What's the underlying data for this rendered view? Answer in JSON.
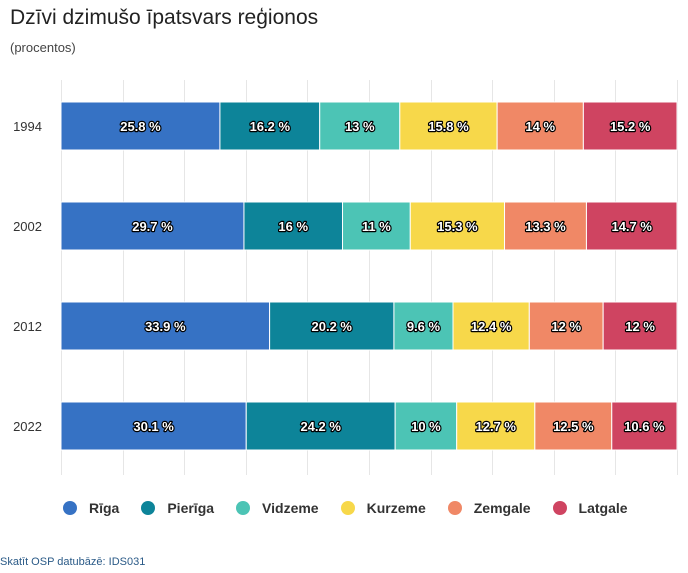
{
  "header": {
    "title": "Dzīvi dzimušo īpatsvars reģionos",
    "subtitle": "(procentos)"
  },
  "source_link": "Skatīt OSP datubāzē: IDS031",
  "chart_data": {
    "type": "bar",
    "orientation": "horizontal",
    "stacked": "percent",
    "categories": [
      "1994",
      "2002",
      "2012",
      "2022"
    ],
    "series": [
      {
        "name": "Rīga",
        "color": "#3672c4",
        "values": [
          25.8,
          29.7,
          33.9,
          30.1
        ],
        "labels": [
          "25.8 %",
          "29.7 %",
          "33.9 %",
          "30.1 %"
        ]
      },
      {
        "name": "Pierīga",
        "color": "#0d8499",
        "values": [
          16.2,
          16,
          20.2,
          24.2
        ],
        "labels": [
          "16.2 %",
          "16 %",
          "20.2 %",
          "24.2 %"
        ]
      },
      {
        "name": "Vidzeme",
        "color": "#4cc4b5",
        "values": [
          13,
          11,
          9.6,
          10
        ],
        "labels": [
          "13 %",
          "11 %",
          "9.6 %",
          "10 %"
        ]
      },
      {
        "name": "Kurzeme",
        "color": "#f7d84a",
        "values": [
          15.8,
          15.3,
          12.4,
          12.7
        ],
        "labels": [
          "15.8 %",
          "15.3 %",
          "12.4 %",
          "12.7 %"
        ]
      },
      {
        "name": "Zemgale",
        "color": "#f08866",
        "values": [
          14,
          13.3,
          12,
          12.5
        ],
        "labels": [
          "14 %",
          "13.3 %",
          "12 %",
          "12.5 %"
        ]
      },
      {
        "name": "Latgale",
        "color": "#cf4461",
        "values": [
          15.2,
          14.7,
          12,
          10.6
        ],
        "labels": [
          "15.2 %",
          "14.7 %",
          "12 %",
          "10.6 %"
        ]
      }
    ],
    "xlim": [
      0,
      100
    ],
    "grid": true,
    "legend_position": "bottom"
  }
}
